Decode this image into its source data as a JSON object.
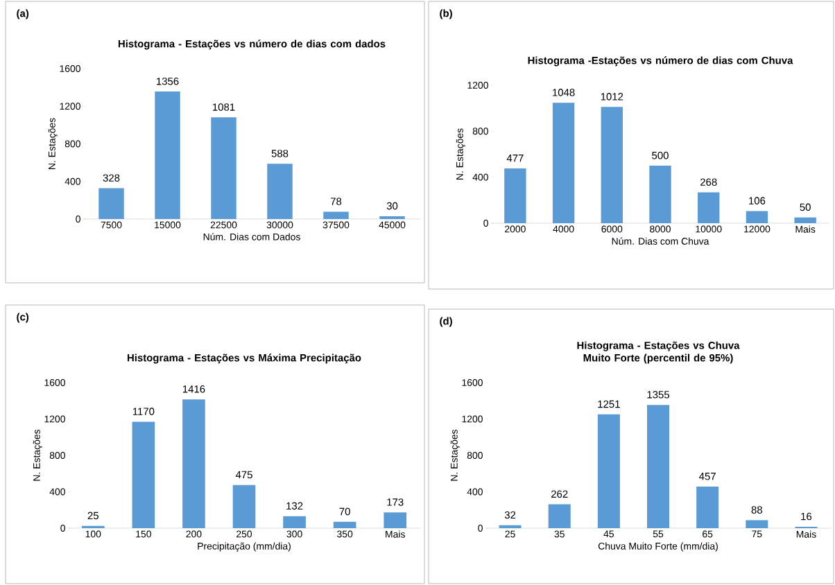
{
  "chart_data": [
    {
      "type": "bar",
      "title": "Histograma - Estações vs número de dias com dados",
      "xlabel": "Núm. Dias com Dados",
      "ylabel": "N. Estações",
      "categories": [
        "7500",
        "15000",
        "22500",
        "30000",
        "37500",
        "45000"
      ],
      "values": [
        328,
        1356,
        1081,
        588,
        78,
        30
      ],
      "color": "#5b9bd5",
      "ylim": [
        0,
        1600
      ],
      "yticks": [
        0,
        400,
        800,
        1200,
        1600
      ],
      "data_labels": true,
      "annotations": [
        "(a)"
      ]
    },
    {
      "type": "bar",
      "title": "Histograma -Estações vs número de dias com Chuva",
      "xlabel": "Núm. Dias com Chuva",
      "ylabel": "N. Estações",
      "categories": [
        "2000",
        "4000",
        "6000",
        "8000",
        "10000",
        "12000",
        "Mais"
      ],
      "values": [
        477,
        1048,
        1012,
        500,
        268,
        106,
        50
      ],
      "color": "#5b9bd5",
      "ylim": [
        0,
        1200
      ],
      "yticks": [
        0,
        400,
        800,
        1200
      ],
      "data_labels": true,
      "annotations": [
        "(b)"
      ]
    },
    {
      "type": "bar",
      "title": "Histograma - Estações vs Máxima Precipitação",
      "xlabel": "Precipitação (mm/dia)",
      "ylabel": "N. Estações",
      "categories": [
        "100",
        "150",
        "200",
        "250",
        "300",
        "350",
        "Mais"
      ],
      "values": [
        25,
        1170,
        1416,
        475,
        132,
        70,
        173
      ],
      "color": "#5b9bd5",
      "ylim": [
        0,
        1600
      ],
      "yticks": [
        0,
        400,
        800,
        1200,
        1600
      ],
      "data_labels": true,
      "annotations": [
        "(c)"
      ]
    },
    {
      "type": "bar",
      "title": "Histograma - Estações vs Chuva Muito Forte (percentil de 95%)",
      "xlabel": "Chuva Muito Forte (mm/dia)",
      "ylabel": "N. Estações",
      "categories": [
        "25",
        "35",
        "45",
        "55",
        "65",
        "75",
        "Mais"
      ],
      "values": [
        32,
        262,
        1251,
        1355,
        457,
        88,
        16
      ],
      "color": "#5b9bd5",
      "ylim": [
        0,
        1600
      ],
      "yticks": [
        0,
        400,
        800,
        1200,
        1600
      ],
      "data_labels": true,
      "annotations": [
        "(d)"
      ]
    }
  ]
}
